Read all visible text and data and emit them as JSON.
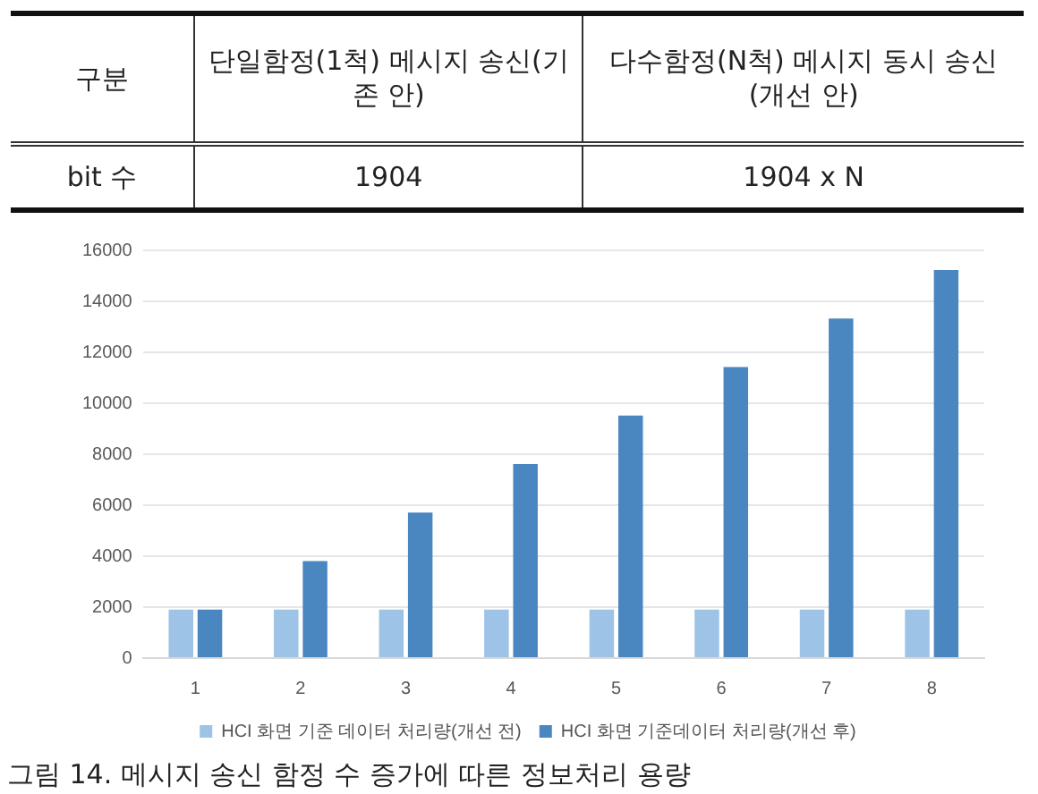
{
  "chart_data": {
    "type": "bar",
    "categories": [
      "1",
      "2",
      "3",
      "4",
      "5",
      "6",
      "7",
      "8"
    ],
    "series": [
      {
        "name": "HCI 화면 기준 데이터 처리량(개선 전)",
        "color": "#9dc3e6",
        "values": [
          1904,
          1904,
          1904,
          1904,
          1904,
          1904,
          1904,
          1904
        ]
      },
      {
        "name": "HCI 화면 기준데이터 처리량(개선 후)",
        "color": "#4a86c0",
        "values": [
          1904,
          3808,
          5712,
          7616,
          9520,
          11424,
          13328,
          15232
        ]
      }
    ],
    "ylim": [
      0,
      16000
    ],
    "yticks": [
      0,
      2000,
      4000,
      6000,
      8000,
      10000,
      12000,
      14000,
      16000
    ],
    "grid": "y",
    "legend": "bottom",
    "annotations": [
      "구분",
      "단일함정(1척) 메시지 송신(기존 안)",
      "다수함정(N척) 메시지 동시 송신(개선 안)",
      "bit 수",
      "1904",
      "1904 x N",
      "그림 14. 메시지 송신 함정 수 증가에 따른 정보처리 용량"
    ]
  }
}
